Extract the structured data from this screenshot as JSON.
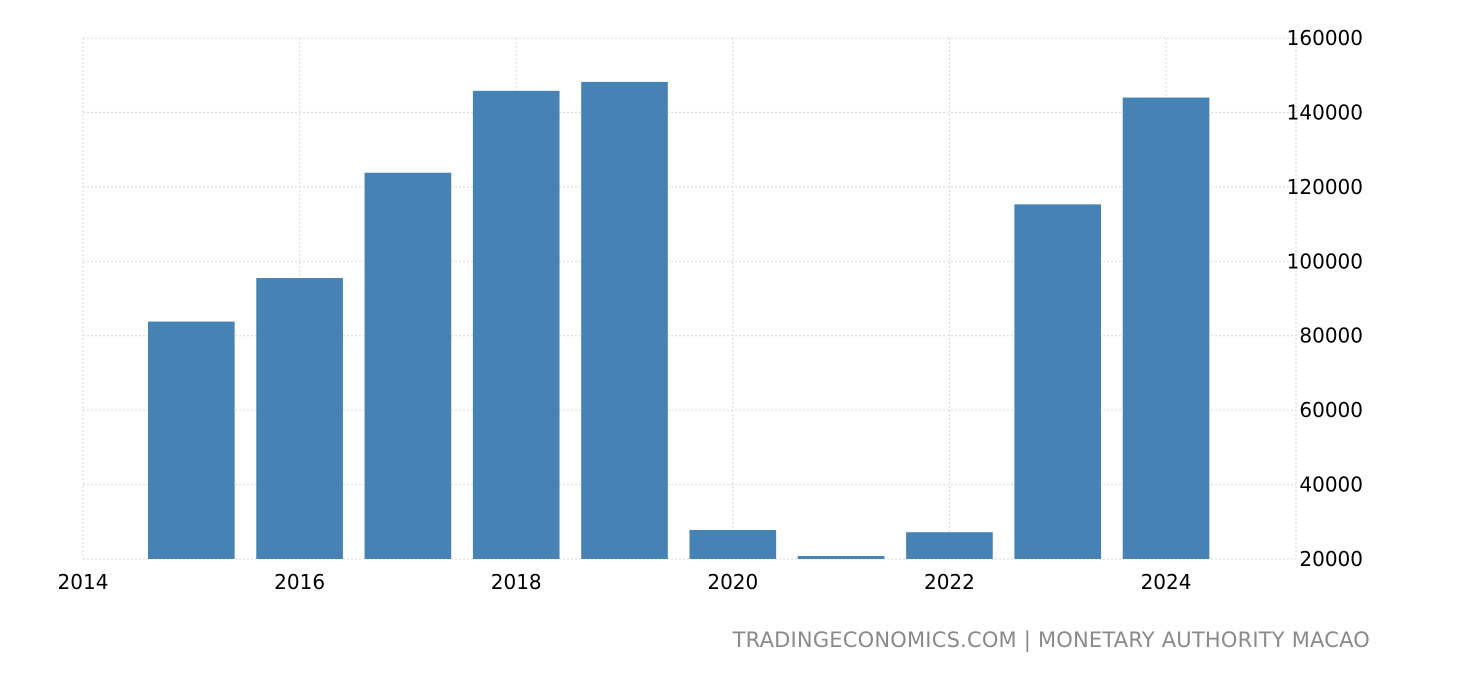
{
  "chart_data": {
    "type": "bar",
    "title": "",
    "xlabel": "",
    "ylabel": "",
    "x": [
      2015,
      2016,
      2017,
      2018,
      2019,
      2020,
      2021,
      2022,
      2023,
      2024
    ],
    "values": [
      83800,
      95500,
      123800,
      145800,
      148200,
      27800,
      20800,
      27200,
      115300,
      144000
    ],
    "ylim": [
      20000,
      160000
    ],
    "xlim": [
      2014,
      2025.2
    ],
    "yticks": [
      "20000",
      "40000",
      "60000",
      "80000",
      "100000",
      "120000",
      "140000",
      "160000"
    ],
    "ytick_values": [
      20000,
      40000,
      60000,
      80000,
      100000,
      120000,
      140000,
      160000
    ],
    "xticks": [
      "2014",
      "2016",
      "2018",
      "2020",
      "2022",
      "2024"
    ],
    "xtick_values": [
      2014,
      2016,
      2018,
      2020,
      2022,
      2024
    ],
    "grid": true,
    "y_axis_side": "right",
    "bar_color": "#4682b4",
    "grid_color": "#d9d9d9"
  },
  "source": {
    "site": "TRADINGECONOMICS.COM",
    "separator": "|",
    "provider": "MONETARY AUTHORITY MACAO"
  }
}
